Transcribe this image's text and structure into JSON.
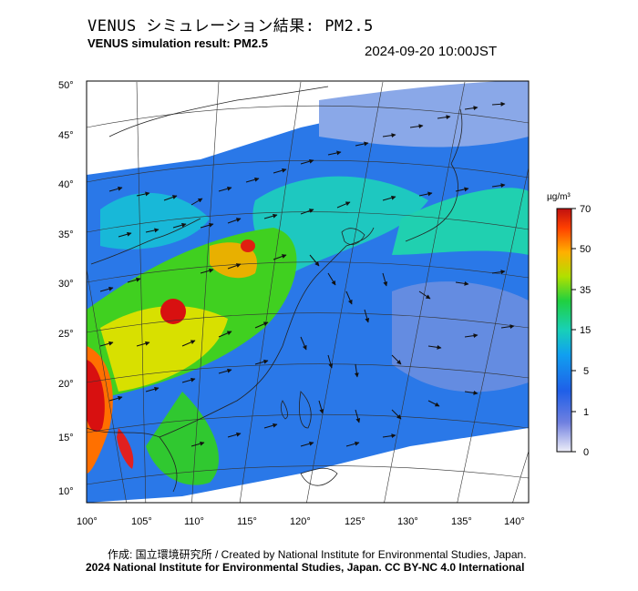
{
  "header": {
    "title_jp": "VENUS シミュレーション結果: PM2.5",
    "title_en": "VENUS simulation result: PM2.5",
    "timestamp": "2024-09-20 10:00JST"
  },
  "axes": {
    "lat_labels": [
      "50°",
      "45°",
      "40°",
      "35°",
      "30°",
      "25°",
      "20°",
      "15°",
      "10°"
    ],
    "lon_labels": [
      "100°",
      "105°",
      "110°",
      "115°",
      "120°",
      "125°",
      "130°",
      "135°",
      "140°"
    ]
  },
  "legend": {
    "unit": "µg/m³",
    "levels": [
      "70",
      "50",
      "35",
      "15",
      "5",
      "1",
      "0"
    ],
    "colors": [
      "#e8e8f4",
      "#3050d8",
      "#1090f0",
      "#18d0b0",
      "#20d020",
      "#e0e000",
      "#ff8000",
      "#d01010"
    ]
  },
  "footer": {
    "credit": "作成: 国立環境研究所 / Created by National Institute for Environmental Studies, Japan.",
    "license": "2024 National Institute for Environmental Studies, Japan. CC BY-NC 4.0 International"
  }
}
